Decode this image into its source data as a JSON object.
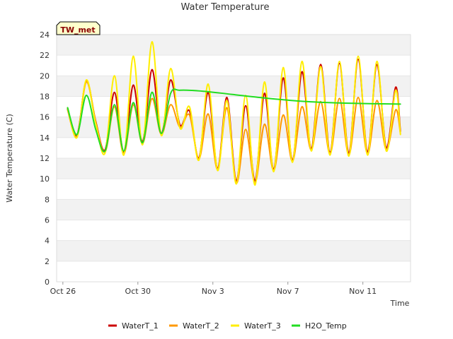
{
  "chart_data": {
    "type": "line",
    "title": "Water Temperature",
    "site_tag": "TW_met",
    "xlabel": "Time",
    "ylabel": "Water Temperature (C)",
    "xlim": [
      "2023-10-26",
      "2023-11-13"
    ],
    "ylim": [
      0,
      24
    ],
    "yticks": [
      0,
      2,
      4,
      6,
      8,
      10,
      12,
      14,
      16,
      18,
      20,
      22,
      24
    ],
    "xticks": [
      {
        "date": "2023-10-26",
        "label": "Oct 26"
      },
      {
        "date": "2023-10-30",
        "label": "Oct 30"
      },
      {
        "date": "2023-11-03",
        "label": "Nov 3"
      },
      {
        "date": "2023-11-07",
        "label": "Nov 7"
      },
      {
        "date": "2023-11-11",
        "label": "Nov 11"
      }
    ],
    "grid": "horizontal bands",
    "legend_position": "bottom",
    "series": [
      {
        "name": "WaterT_1",
        "color": "#cc0000",
        "points": [
          [
            "2023-10-26 06:00",
            16.8
          ],
          [
            "2023-10-26 18:00",
            14.2
          ],
          [
            "2023-10-27 06:00",
            19.5
          ],
          [
            "2023-10-27 18:00",
            15.6
          ],
          [
            "2023-10-28 06:00",
            12.8
          ],
          [
            "2023-10-28 18:00",
            18.4
          ],
          [
            "2023-10-29 06:00",
            12.6
          ],
          [
            "2023-10-29 18:00",
            19.1
          ],
          [
            "2023-10-30 06:00",
            13.6
          ],
          [
            "2023-10-30 18:00",
            20.6
          ],
          [
            "2023-10-31 06:00",
            14.4
          ],
          [
            "2023-10-31 18:00",
            19.6
          ],
          [
            "2023-11-01 06:00",
            15.2
          ],
          [
            "2023-11-01 18:00",
            16.6
          ],
          [
            "2023-11-02 06:00",
            12.0
          ],
          [
            "2023-11-02 18:00",
            18.4
          ],
          [
            "2023-11-03 06:00",
            11.0
          ],
          [
            "2023-11-03 18:00",
            17.9
          ],
          [
            "2023-11-04 06:00",
            9.8
          ],
          [
            "2023-11-04 18:00",
            17.1
          ],
          [
            "2023-11-05 06:00",
            9.8
          ],
          [
            "2023-11-05 18:00",
            18.3
          ],
          [
            "2023-11-06 06:00",
            10.9
          ],
          [
            "2023-11-06 18:00",
            19.8
          ],
          [
            "2023-11-07 06:00",
            11.8
          ],
          [
            "2023-11-07 18:00",
            20.4
          ],
          [
            "2023-11-08 06:00",
            12.9
          ],
          [
            "2023-11-08 18:00",
            21.1
          ],
          [
            "2023-11-09 06:00",
            12.6
          ],
          [
            "2023-11-09 18:00",
            21.2
          ],
          [
            "2023-11-10 06:00",
            12.5
          ],
          [
            "2023-11-10 18:00",
            21.6
          ],
          [
            "2023-11-11 06:00",
            12.6
          ],
          [
            "2023-11-11 18:00",
            21.1
          ],
          [
            "2023-11-12 06:00",
            13.0
          ],
          [
            "2023-11-12 18:00",
            18.9
          ],
          [
            "2023-11-13 00:00",
            14.6
          ]
        ]
      },
      {
        "name": "WaterT_2",
        "color": "#ff9900",
        "points": [
          [
            "2023-10-26 06:00",
            16.7
          ],
          [
            "2023-10-26 18:00",
            14.1
          ],
          [
            "2023-10-27 06:00",
            19.4
          ],
          [
            "2023-10-27 18:00",
            15.5
          ],
          [
            "2023-10-28 06:00",
            12.6
          ],
          [
            "2023-10-28 18:00",
            17.0
          ],
          [
            "2023-10-29 06:00",
            12.4
          ],
          [
            "2023-10-29 18:00",
            17.2
          ],
          [
            "2023-10-30 06:00",
            13.4
          ],
          [
            "2023-10-30 18:00",
            17.8
          ],
          [
            "2023-10-31 06:00",
            14.3
          ],
          [
            "2023-10-31 18:00",
            17.2
          ],
          [
            "2023-11-01 06:00",
            15.0
          ],
          [
            "2023-11-01 18:00",
            16.2
          ],
          [
            "2023-11-02 06:00",
            11.9
          ],
          [
            "2023-11-02 18:00",
            16.3
          ],
          [
            "2023-11-03 06:00",
            10.9
          ],
          [
            "2023-11-03 18:00",
            16.9
          ],
          [
            "2023-11-04 06:00",
            9.6
          ],
          [
            "2023-11-04 18:00",
            14.8
          ],
          [
            "2023-11-05 06:00",
            9.6
          ],
          [
            "2023-11-05 18:00",
            15.3
          ],
          [
            "2023-11-06 06:00",
            10.8
          ],
          [
            "2023-11-06 18:00",
            16.2
          ],
          [
            "2023-11-07 06:00",
            11.7
          ],
          [
            "2023-11-07 18:00",
            17.0
          ],
          [
            "2023-11-08 06:00",
            12.8
          ],
          [
            "2023-11-08 18:00",
            17.5
          ],
          [
            "2023-11-09 06:00",
            12.4
          ],
          [
            "2023-11-09 18:00",
            17.8
          ],
          [
            "2023-11-10 06:00",
            12.3
          ],
          [
            "2023-11-10 18:00",
            17.9
          ],
          [
            "2023-11-11 06:00",
            12.4
          ],
          [
            "2023-11-11 18:00",
            17.6
          ],
          [
            "2023-11-12 06:00",
            12.8
          ],
          [
            "2023-11-12 18:00",
            16.7
          ],
          [
            "2023-11-13 00:00",
            14.4
          ]
        ]
      },
      {
        "name": "WaterT_3",
        "color": "#ffee00",
        "points": [
          [
            "2023-10-26 06:00",
            16.9
          ],
          [
            "2023-10-26 18:00",
            14.0
          ],
          [
            "2023-10-27 06:00",
            19.6
          ],
          [
            "2023-10-27 18:00",
            15.4
          ],
          [
            "2023-10-28 06:00",
            12.5
          ],
          [
            "2023-10-28 18:00",
            20.0
          ],
          [
            "2023-10-29 06:00",
            12.3
          ],
          [
            "2023-10-29 18:00",
            21.9
          ],
          [
            "2023-10-30 06:00",
            13.3
          ],
          [
            "2023-10-30 18:00",
            23.3
          ],
          [
            "2023-10-31 06:00",
            14.2
          ],
          [
            "2023-10-31 18:00",
            20.7
          ],
          [
            "2023-11-01 06:00",
            14.9
          ],
          [
            "2023-11-01 18:00",
            17.0
          ],
          [
            "2023-11-02 06:00",
            11.8
          ],
          [
            "2023-11-02 18:00",
            19.2
          ],
          [
            "2023-11-03 06:00",
            10.8
          ],
          [
            "2023-11-03 18:00",
            17.6
          ],
          [
            "2023-11-04 06:00",
            9.5
          ],
          [
            "2023-11-04 18:00",
            18.1
          ],
          [
            "2023-11-05 06:00",
            9.4
          ],
          [
            "2023-11-05 18:00",
            19.4
          ],
          [
            "2023-11-06 06:00",
            10.7
          ],
          [
            "2023-11-06 18:00",
            20.8
          ],
          [
            "2023-11-07 06:00",
            11.6
          ],
          [
            "2023-11-07 18:00",
            21.4
          ],
          [
            "2023-11-08 06:00",
            12.7
          ],
          [
            "2023-11-08 18:00",
            20.9
          ],
          [
            "2023-11-09 06:00",
            12.3
          ],
          [
            "2023-11-09 18:00",
            21.4
          ],
          [
            "2023-11-10 06:00",
            12.2
          ],
          [
            "2023-11-10 18:00",
            21.9
          ],
          [
            "2023-11-11 06:00",
            12.3
          ],
          [
            "2023-11-11 18:00",
            21.4
          ],
          [
            "2023-11-12 06:00",
            12.7
          ],
          [
            "2023-11-12 18:00",
            18.6
          ],
          [
            "2023-11-13 00:00",
            14.3
          ]
        ]
      },
      {
        "name": "H2O_Temp",
        "color": "#22dd22",
        "points": [
          [
            "2023-10-26 06:00",
            16.9
          ],
          [
            "2023-10-26 18:00",
            14.3
          ],
          [
            "2023-10-27 06:00",
            18.1
          ],
          [
            "2023-10-27 18:00",
            14.8
          ],
          [
            "2023-10-28 06:00",
            12.7
          ],
          [
            "2023-10-28 18:00",
            17.2
          ],
          [
            "2023-10-29 06:00",
            12.7
          ],
          [
            "2023-10-29 18:00",
            17.4
          ],
          [
            "2023-10-30 06:00",
            13.5
          ],
          [
            "2023-10-30 18:00",
            18.4
          ],
          [
            "2023-10-31 06:00",
            14.4
          ],
          [
            "2023-10-31 18:00",
            18.3
          ],
          [
            "2023-11-01 06:00",
            18.6
          ],
          [
            "2023-11-02 12:00",
            18.5
          ],
          [
            "2023-11-04 00:00",
            18.2
          ],
          [
            "2023-11-06 00:00",
            17.8
          ],
          [
            "2023-11-08 00:00",
            17.5
          ],
          [
            "2023-11-10 00:00",
            17.35
          ],
          [
            "2023-11-13 00:00",
            17.25
          ]
        ]
      }
    ]
  }
}
